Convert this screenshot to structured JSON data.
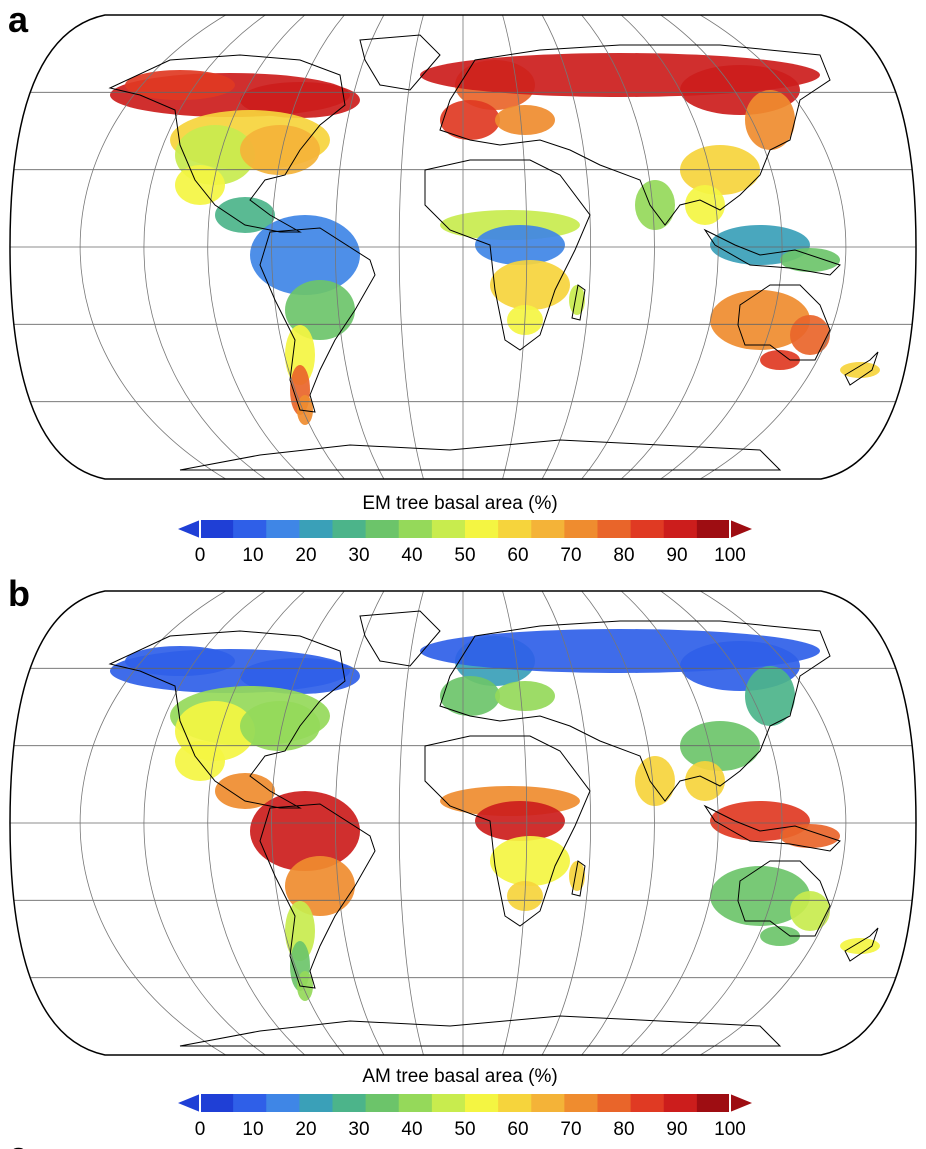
{
  "panels": [
    {
      "letter": "a",
      "colorbar_title": "EM tree basal area (%)",
      "variable": "EM"
    },
    {
      "letter": "b",
      "colorbar_title": "AM tree basal area (%)",
      "variable": "AM"
    }
  ],
  "colorbar": {
    "ticks": [
      "0",
      "10",
      "20",
      "30",
      "40",
      "50",
      "60",
      "70",
      "80",
      "90",
      "100"
    ],
    "colors": [
      "#1f3fd6",
      "#2f5fe8",
      "#3f86e6",
      "#3aa0b8",
      "#4cb48a",
      "#6cc46a",
      "#95d95a",
      "#c8ec4e",
      "#f4f542",
      "#f6d43c",
      "#f4b338",
      "#ef8c2f",
      "#e9652a",
      "#e03a23",
      "#cc1d1c",
      "#9e0d12"
    ],
    "under_color": "#1f3fd6",
    "over_color": "#9e0d12"
  },
  "map": {
    "projection": "robinson",
    "background": "#ffffff",
    "coast_color": "#000000"
  },
  "cutoff_letter": "c"
}
